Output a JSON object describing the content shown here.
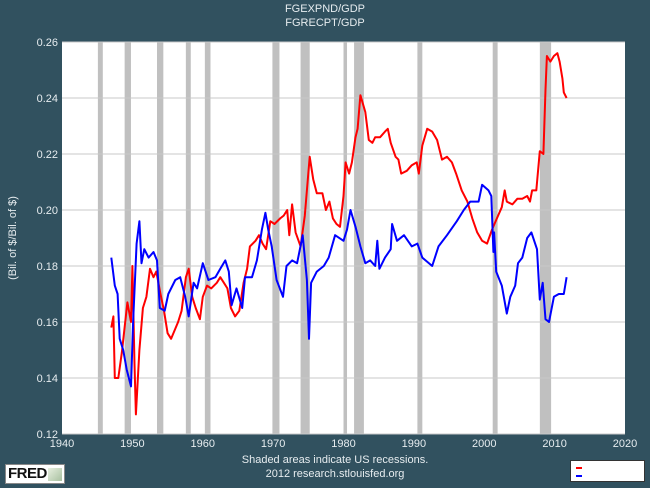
{
  "header": {
    "title_line1": "FGEXPND/GDP",
    "title_line2": "FGRECPT/GDP"
  },
  "footer": {
    "note": "Shaded areas indicate US recessions.",
    "source": "2012 research.stlouisfed.org",
    "logo": "FRED"
  },
  "legend": {
    "entries": [
      {
        "color": "#ff0000"
      },
      {
        "color": "#0000ff"
      }
    ]
  },
  "colors": {
    "background": "#31515f",
    "plot": "#ffffff",
    "grid": "#c8c8c8",
    "recession": "#c0c0c0"
  },
  "chart_data": {
    "type": "line",
    "title": "FGEXPND/GDP / FGRECPT/GDP",
    "ylabel": "(Bil. of $/Bil. of $)",
    "xlabel": "",
    "xlim": [
      1940,
      2020
    ],
    "ylim": [
      0.12,
      0.26
    ],
    "grid": true,
    "legend_position": "bottom-right",
    "xticks": [
      "1940",
      "1950",
      "1960",
      "1970",
      "1980",
      "1990",
      "2000",
      "2010",
      "2020"
    ],
    "yticks": [
      "0.12",
      "0.14",
      "0.16",
      "0.18",
      "0.20",
      "0.22",
      "0.24",
      "0.26"
    ],
    "recessions": [
      [
        1945.1,
        1945.8
      ],
      [
        1948.9,
        1949.8
      ],
      [
        1953.5,
        1954.4
      ],
      [
        1957.6,
        1958.3
      ],
      [
        1960.3,
        1961.1
      ],
      [
        1969.9,
        1970.9
      ],
      [
        1973.9,
        1975.2
      ],
      [
        1980.0,
        1980.5
      ],
      [
        1981.5,
        1982.9
      ],
      [
        1990.5,
        1991.2
      ],
      [
        2001.2,
        2001.9
      ],
      [
        2007.9,
        2009.5
      ]
    ],
    "series": [
      {
        "name": "FGEXPND/GDP",
        "color": "#ff0000",
        "points": [
          [
            1947.0,
            0.158
          ],
          [
            1947.3,
            0.162
          ],
          [
            1947.5,
            0.14
          ],
          [
            1948.0,
            0.14
          ],
          [
            1948.5,
            0.149
          ],
          [
            1949.3,
            0.167
          ],
          [
            1949.8,
            0.16
          ],
          [
            1950.0,
            0.18
          ],
          [
            1950.3,
            0.145
          ],
          [
            1950.5,
            0.127
          ],
          [
            1951.0,
            0.15
          ],
          [
            1951.5,
            0.165
          ],
          [
            1952.0,
            0.169
          ],
          [
            1952.5,
            0.179
          ],
          [
            1953.0,
            0.176
          ],
          [
            1953.4,
            0.178
          ],
          [
            1954.0,
            0.17
          ],
          [
            1954.5,
            0.164
          ],
          [
            1955.0,
            0.156
          ],
          [
            1955.5,
            0.154
          ],
          [
            1956.0,
            0.157
          ],
          [
            1956.5,
            0.16
          ],
          [
            1957.0,
            0.164
          ],
          [
            1957.6,
            0.176
          ],
          [
            1958.0,
            0.179
          ],
          [
            1958.5,
            0.169
          ],
          [
            1959.0,
            0.165
          ],
          [
            1959.6,
            0.161
          ],
          [
            1960.0,
            0.169
          ],
          [
            1960.6,
            0.173
          ],
          [
            1961.2,
            0.172
          ],
          [
            1962.0,
            0.174
          ],
          [
            1962.5,
            0.176
          ],
          [
            1963.0,
            0.174
          ],
          [
            1963.5,
            0.172
          ],
          [
            1964.0,
            0.165
          ],
          [
            1964.6,
            0.162
          ],
          [
            1965.2,
            0.164
          ],
          [
            1965.8,
            0.174
          ],
          [
            1966.3,
            0.179
          ],
          [
            1966.7,
            0.187
          ],
          [
            1967.5,
            0.189
          ],
          [
            1968.0,
            0.191
          ],
          [
            1968.5,
            0.188
          ],
          [
            1969.0,
            0.186
          ],
          [
            1969.6,
            0.196
          ],
          [
            1970.2,
            0.195
          ],
          [
            1971.0,
            0.197
          ],
          [
            1971.5,
            0.198
          ],
          [
            1972.0,
            0.2
          ],
          [
            1972.3,
            0.191
          ],
          [
            1972.7,
            0.202
          ],
          [
            1973.2,
            0.192
          ],
          [
            1973.9,
            0.187
          ],
          [
            1974.5,
            0.198
          ],
          [
            1975.2,
            0.219
          ],
          [
            1975.7,
            0.211
          ],
          [
            1976.2,
            0.206
          ],
          [
            1977.0,
            0.206
          ],
          [
            1977.5,
            0.2
          ],
          [
            1978.0,
            0.203
          ],
          [
            1978.5,
            0.197
          ],
          [
            1979.0,
            0.195
          ],
          [
            1979.5,
            0.194
          ],
          [
            1980.0,
            0.205
          ],
          [
            1980.3,
            0.217
          ],
          [
            1980.8,
            0.213
          ],
          [
            1981.2,
            0.217
          ],
          [
            1981.7,
            0.226
          ],
          [
            1982.0,
            0.229
          ],
          [
            1982.4,
            0.241
          ],
          [
            1983.1,
            0.235
          ],
          [
            1983.6,
            0.225
          ],
          [
            1984.1,
            0.224
          ],
          [
            1984.5,
            0.226
          ],
          [
            1985.2,
            0.226
          ],
          [
            1985.9,
            0.228
          ],
          [
            1986.3,
            0.229
          ],
          [
            1986.7,
            0.224
          ],
          [
            1987.4,
            0.219
          ],
          [
            1987.8,
            0.218
          ],
          [
            1988.2,
            0.213
          ],
          [
            1989.0,
            0.214
          ],
          [
            1989.7,
            0.216
          ],
          [
            1990.4,
            0.217
          ],
          [
            1990.7,
            0.213
          ],
          [
            1991.2,
            0.223
          ],
          [
            1991.9,
            0.229
          ],
          [
            1992.6,
            0.228
          ],
          [
            1993.3,
            0.225
          ],
          [
            1994.0,
            0.218
          ],
          [
            1994.7,
            0.219
          ],
          [
            1995.4,
            0.217
          ],
          [
            1996.0,
            0.213
          ],
          [
            1996.8,
            0.207
          ],
          [
            1997.6,
            0.203
          ],
          [
            1998.3,
            0.197
          ],
          [
            1999.0,
            0.192
          ],
          [
            1999.7,
            0.189
          ],
          [
            2000.4,
            0.188
          ],
          [
            2001.1,
            0.193
          ],
          [
            2001.8,
            0.197
          ],
          [
            2002.5,
            0.201
          ],
          [
            2002.9,
            0.207
          ],
          [
            2003.2,
            0.203
          ],
          [
            2004.0,
            0.202
          ],
          [
            2004.7,
            0.204
          ],
          [
            2005.4,
            0.204
          ],
          [
            2006.1,
            0.205
          ],
          [
            2006.5,
            0.203
          ],
          [
            2006.8,
            0.207
          ],
          [
            2007.4,
            0.207
          ],
          [
            2007.9,
            0.221
          ],
          [
            2008.4,
            0.22
          ],
          [
            2008.7,
            0.243
          ],
          [
            2008.9,
            0.255
          ],
          [
            2009.4,
            0.253
          ],
          [
            2009.9,
            0.255
          ],
          [
            2010.4,
            0.256
          ],
          [
            2010.7,
            0.253
          ],
          [
            2011.1,
            0.247
          ],
          [
            2011.3,
            0.242
          ],
          [
            2011.7,
            0.24
          ]
        ]
      },
      {
        "name": "FGRECPT/GDP",
        "color": "#0000ff",
        "points": [
          [
            1947.0,
            0.183
          ],
          [
            1947.5,
            0.173
          ],
          [
            1947.9,
            0.17
          ],
          [
            1948.2,
            0.154
          ],
          [
            1948.7,
            0.15
          ],
          [
            1949.2,
            0.143
          ],
          [
            1949.8,
            0.137
          ],
          [
            1950.1,
            0.16
          ],
          [
            1950.6,
            0.188
          ],
          [
            1951.0,
            0.196
          ],
          [
            1951.3,
            0.181
          ],
          [
            1951.7,
            0.186
          ],
          [
            1952.3,
            0.183
          ],
          [
            1953.0,
            0.185
          ],
          [
            1953.5,
            0.182
          ],
          [
            1953.9,
            0.165
          ],
          [
            1954.6,
            0.164
          ],
          [
            1955.1,
            0.17
          ],
          [
            1956.1,
            0.175
          ],
          [
            1956.8,
            0.176
          ],
          [
            1957.5,
            0.169
          ],
          [
            1958.0,
            0.162
          ],
          [
            1958.7,
            0.174
          ],
          [
            1959.2,
            0.172
          ],
          [
            1960.0,
            0.181
          ],
          [
            1960.8,
            0.175
          ],
          [
            1961.8,
            0.176
          ],
          [
            1962.5,
            0.179
          ],
          [
            1963.2,
            0.182
          ],
          [
            1963.7,
            0.178
          ],
          [
            1964.1,
            0.166
          ],
          [
            1964.8,
            0.172
          ],
          [
            1965.6,
            0.165
          ],
          [
            1966.0,
            0.176
          ],
          [
            1967.0,
            0.176
          ],
          [
            1967.7,
            0.182
          ],
          [
            1968.4,
            0.193
          ],
          [
            1968.9,
            0.199
          ],
          [
            1969.3,
            0.193
          ],
          [
            1969.8,
            0.187
          ],
          [
            1970.5,
            0.175
          ],
          [
            1971.4,
            0.169
          ],
          [
            1971.9,
            0.18
          ],
          [
            1972.7,
            0.182
          ],
          [
            1973.4,
            0.181
          ],
          [
            1974.2,
            0.191
          ],
          [
            1974.8,
            0.175
          ],
          [
            1975.1,
            0.154
          ],
          [
            1975.4,
            0.174
          ],
          [
            1976.2,
            0.178
          ],
          [
            1977.2,
            0.18
          ],
          [
            1977.9,
            0.183
          ],
          [
            1978.8,
            0.191
          ],
          [
            1980.0,
            0.189
          ],
          [
            1980.5,
            0.193
          ],
          [
            1981.0,
            0.2
          ],
          [
            1981.7,
            0.194
          ],
          [
            1982.4,
            0.187
          ],
          [
            1983.1,
            0.181
          ],
          [
            1983.8,
            0.182
          ],
          [
            1984.5,
            0.18
          ],
          [
            1984.8,
            0.189
          ],
          [
            1985.1,
            0.179
          ],
          [
            1985.9,
            0.183
          ],
          [
            1986.7,
            0.186
          ],
          [
            1986.9,
            0.195
          ],
          [
            1987.6,
            0.189
          ],
          [
            1988.6,
            0.191
          ],
          [
            1989.7,
            0.187
          ],
          [
            1990.5,
            0.188
          ],
          [
            1991.2,
            0.183
          ],
          [
            1992.6,
            0.18
          ],
          [
            1993.5,
            0.187
          ],
          [
            1994.7,
            0.191
          ],
          [
            1996.1,
            0.196
          ],
          [
            1997.1,
            0.2
          ],
          [
            1998.0,
            0.203
          ],
          [
            1999.2,
            0.203
          ],
          [
            1999.7,
            0.209
          ],
          [
            2000.6,
            0.207
          ],
          [
            2001.0,
            0.205
          ],
          [
            2001.3,
            0.185
          ],
          [
            2001.4,
            0.192
          ],
          [
            2001.7,
            0.178
          ],
          [
            2002.5,
            0.173
          ],
          [
            2003.2,
            0.163
          ],
          [
            2003.7,
            0.169
          ],
          [
            2004.4,
            0.173
          ],
          [
            2004.8,
            0.181
          ],
          [
            2005.4,
            0.183
          ],
          [
            2006.1,
            0.19
          ],
          [
            2006.7,
            0.192
          ],
          [
            2007.5,
            0.186
          ],
          [
            2007.9,
            0.168
          ],
          [
            2008.3,
            0.174
          ],
          [
            2008.7,
            0.161
          ],
          [
            2009.2,
            0.16
          ],
          [
            2009.9,
            0.169
          ],
          [
            2010.6,
            0.17
          ],
          [
            2011.3,
            0.17
          ],
          [
            2011.7,
            0.176
          ]
        ]
      }
    ]
  }
}
